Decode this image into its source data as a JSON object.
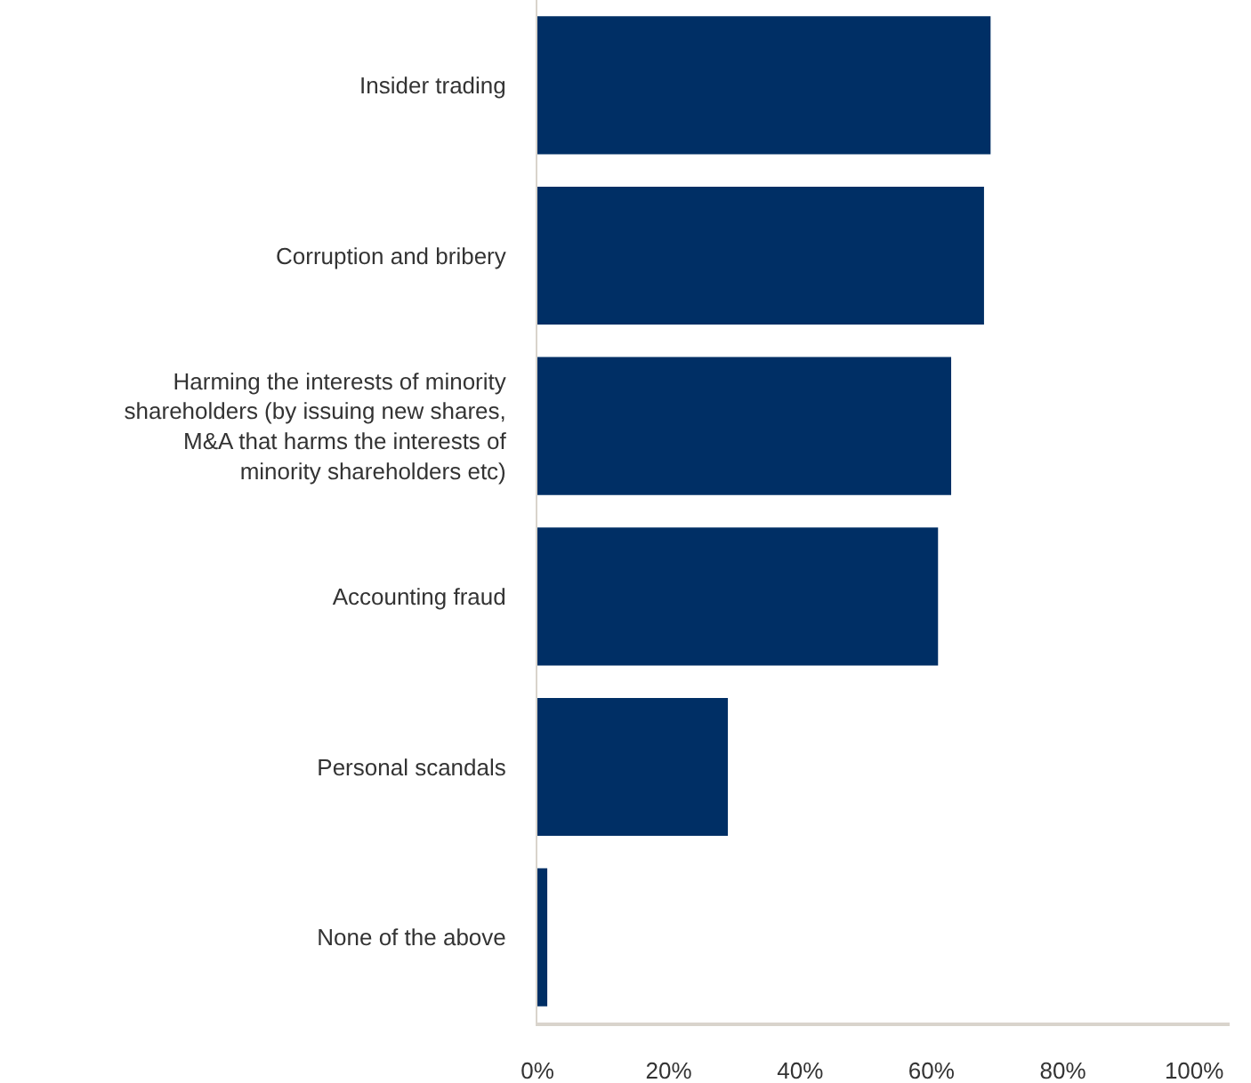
{
  "chart_data": {
    "type": "bar",
    "orientation": "horizontal",
    "categories": [
      "Insider trading",
      "Corruption and bribery",
      "Harming the interests of minority\nshareholders (by issuing new shares,\nM&A that harms the interests of\nminority shareholders etc)",
      "Accounting fraud",
      "Personal scandals",
      "None of the above"
    ],
    "values": [
      69,
      68,
      63,
      61,
      29,
      1.5
    ],
    "color": "#002f65",
    "xlim": [
      0,
      105.4
    ],
    "xticks": [
      {
        "value": 0,
        "label": "0%"
      },
      {
        "value": 20,
        "label": "20%"
      },
      {
        "value": 40,
        "label": "40%"
      },
      {
        "value": 60,
        "label": "60%"
      },
      {
        "value": 80,
        "label": "80%"
      },
      {
        "value": 100,
        "label": "100%"
      }
    ],
    "grid": false
  }
}
